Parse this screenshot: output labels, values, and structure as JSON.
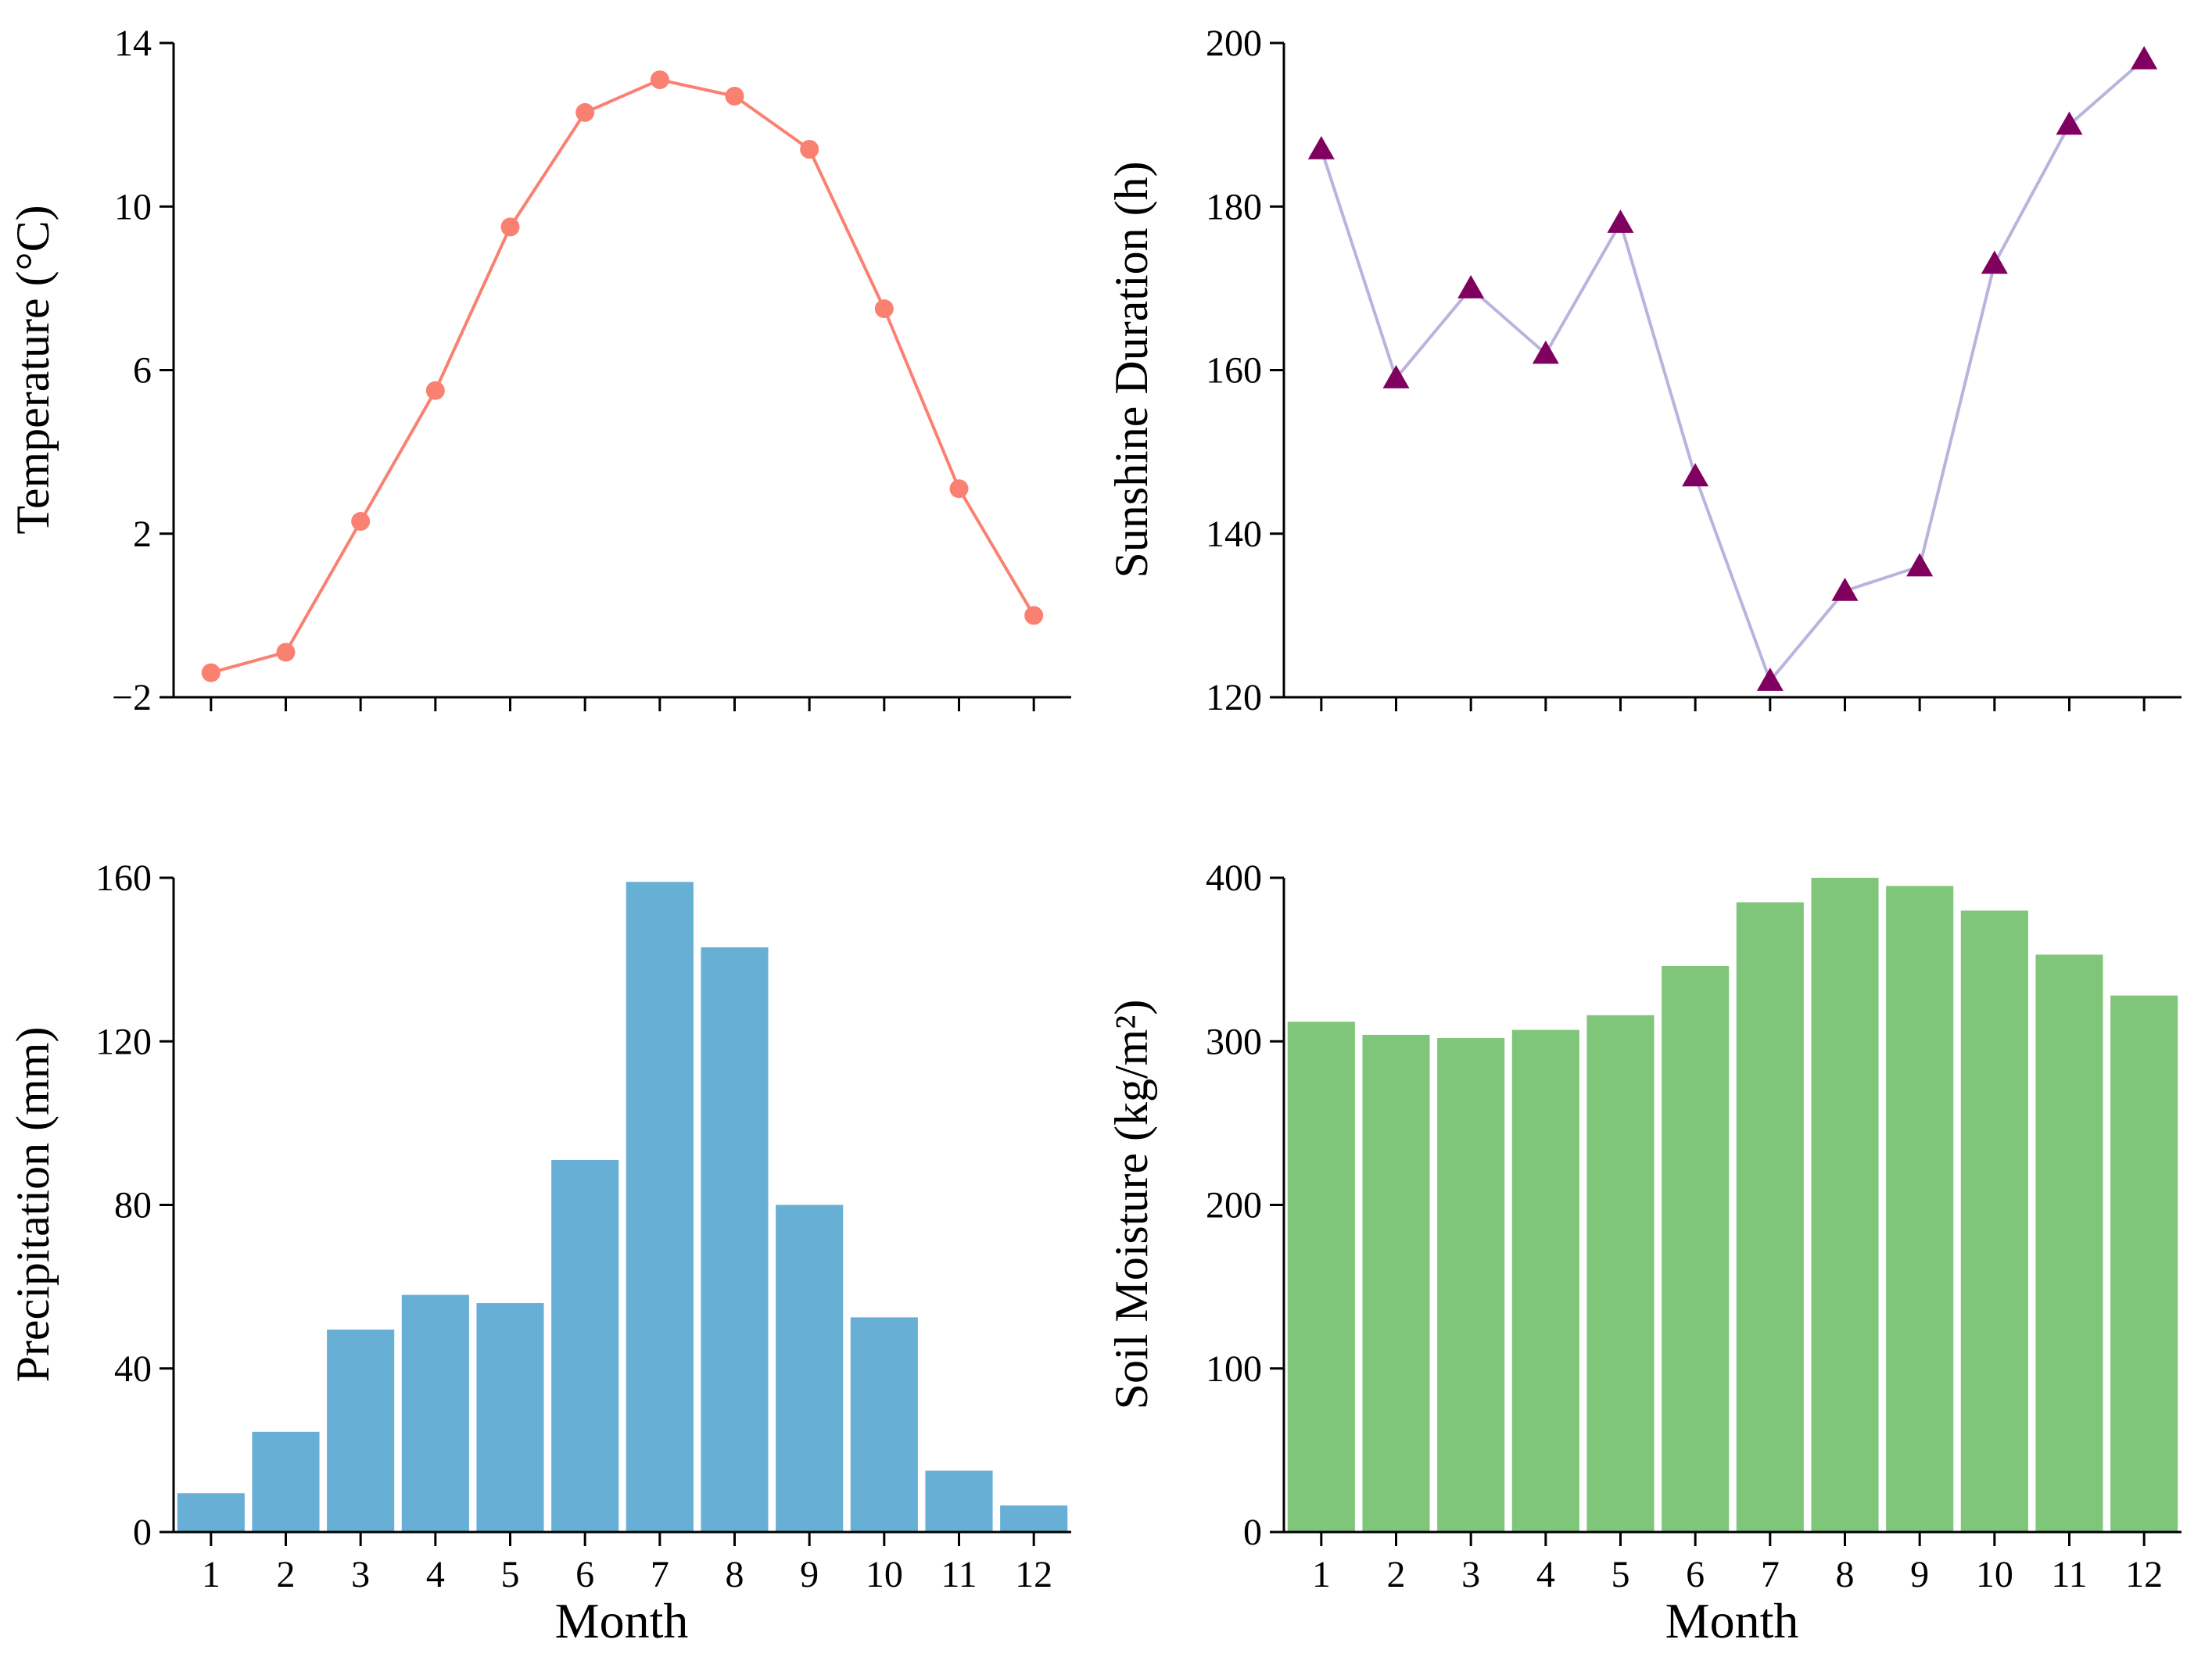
{
  "figure": {
    "background": "#ffffff"
  },
  "chart_data": [
    {
      "id": "temperature",
      "type": "line",
      "ylabel": "Temperature (°C)",
      "xlabel": "",
      "categories": [
        "1",
        "2",
        "3",
        "4",
        "5",
        "6",
        "7",
        "8",
        "9",
        "10",
        "11",
        "12"
      ],
      "values": [
        -1.4,
        -0.9,
        2.3,
        5.5,
        9.5,
        12.3,
        13.1,
        12.7,
        11.4,
        7.5,
        3.1,
        0.0
      ],
      "ylim": [
        -2,
        14
      ],
      "yticks": [
        "−2",
        "2",
        "6",
        "10",
        "14"
      ],
      "ytick_values": [
        -2,
        2,
        6,
        10,
        14
      ],
      "show_x_ticklabels": false,
      "marker": "circle",
      "color": "#fa8072"
    },
    {
      "id": "sunshine",
      "type": "line",
      "ylabel": "Sunshine Duration (h)",
      "xlabel": "",
      "categories": [
        "1",
        "2",
        "3",
        "4",
        "5",
        "6",
        "7",
        "8",
        "9",
        "10",
        "11",
        "12"
      ],
      "values": [
        187,
        159,
        170,
        162,
        178,
        147,
        122,
        133,
        136,
        173,
        190,
        198
      ],
      "ylim": [
        120,
        200
      ],
      "yticks": [
        "120",
        "140",
        "160",
        "180",
        "200"
      ],
      "ytick_values": [
        120,
        140,
        160,
        180,
        200
      ],
      "show_x_ticklabels": false,
      "marker": "triangle",
      "color": "#800060",
      "line_color": "#b9b4de"
    },
    {
      "id": "precipitation",
      "type": "bar",
      "ylabel": "Precipitation (mm)",
      "xlabel": "Month",
      "categories": [
        "1",
        "2",
        "3",
        "4",
        "5",
        "6",
        "7",
        "8",
        "9",
        "10",
        "11",
        "12"
      ],
      "values": [
        9.5,
        24.5,
        49.5,
        58,
        56,
        91,
        159,
        143,
        80,
        52.5,
        15,
        6.5
      ],
      "ylim": [
        0,
        160
      ],
      "yticks": [
        "0",
        "40",
        "80",
        "120",
        "160"
      ],
      "ytick_values": [
        0,
        40,
        80,
        120,
        160
      ],
      "show_x_ticklabels": true,
      "color": "#67afd4"
    },
    {
      "id": "soil_moisture",
      "type": "bar",
      "ylabel": "Soil Moisture (kg/m²)",
      "xlabel": "Month",
      "categories": [
        "1",
        "2",
        "3",
        "4",
        "5",
        "6",
        "7",
        "8",
        "9",
        "10",
        "11",
        "12"
      ],
      "values": [
        312,
        304,
        302,
        307,
        316,
        346,
        385,
        400,
        395,
        380,
        353,
        328
      ],
      "ylim": [
        0,
        400
      ],
      "yticks": [
        "0",
        "100",
        "200",
        "300",
        "400"
      ],
      "ytick_values": [
        0,
        100,
        200,
        300,
        400
      ],
      "show_x_ticklabels": true,
      "color": "#80c67a"
    }
  ]
}
